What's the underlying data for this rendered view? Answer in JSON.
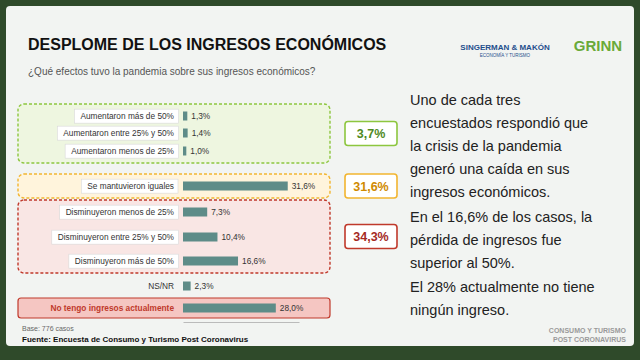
{
  "chart_data": {
    "type": "bar",
    "orientation": "horizontal",
    "title": "DESPLOME DE LOS INGRESOS ECONÓMICOS",
    "subtitle": "¿Qué efectos tuvo la pandemia sobre sus ingresos económicos?",
    "categories": [
      "Aumentaron más de 50%",
      "Aumentaron entre 25% y 50%",
      "Aumentaron menos de 25%",
      "Se mantuvieron iguales",
      "Disminuyeron menos de 25%",
      "Disminuyeron entre 25% y 50%",
      "Disminuyeron más de 50%",
      "NS/NR",
      "No tengo ingresos actualmente"
    ],
    "values": [
      1.3,
      1.4,
      1.0,
      31.6,
      7.3,
      10.4,
      16.6,
      2.3,
      28.0
    ],
    "value_labels": [
      "1,3%",
      "1,4%",
      "1,0%",
      "31,6%",
      "7,3%",
      "10,4%",
      "16,6%",
      "2,3%",
      "28,0%"
    ],
    "color": "#5e8c88",
    "xlim": [
      0,
      35
    ],
    "xticks": [],
    "grid": false,
    "data_labels": true,
    "tick_labels": "y",
    "annotations": [
      "3,7%",
      "31,6%",
      "34,3%"
    ],
    "notes": [
      "Base: 776 casos",
      "Fuente: Encuesta de Consumo y Turismo Post Coronavirus"
    ]
  },
  "logos": [
    "SINGERMAN & MAKÓN",
    "ECONOMÍA Y TURISMO",
    "GRINN"
  ],
  "body_text": [
    [
      "Uno de cada tres",
      "encuestados respondió que",
      "la crisis de la pandemia",
      "generó una caída en sus",
      "ingresos económicos."
    ],
    [
      "En el 16,6% de los casos, la",
      "pérdida de ingresos fue",
      "superior al 50%."
    ],
    [
      "El 28% actualmente no tiene",
      "ningún ingreso."
    ]
  ],
  "footer": [
    "CONSUMO Y TURISMO",
    "POST CORONAVIRUS"
  ]
}
